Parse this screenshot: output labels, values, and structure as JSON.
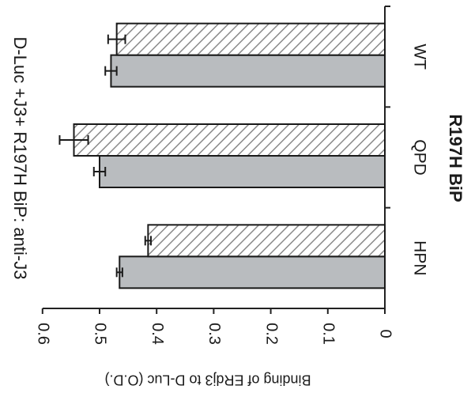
{
  "chart_data": {
    "type": "bar",
    "orientation": "horizontal",
    "title": "D-Luc +J3+ R197H BiP: anti-J3",
    "xlabel": "R197H BiP",
    "ylabel": "Binding of ERdj3 to D-Luc (O.D.)",
    "categories": [
      "WT",
      "QPD",
      "HPN"
    ],
    "series": [
      {
        "values": [
          0.48,
          0.5,
          0.465
        ],
        "errors": [
          0.01,
          0.01,
          0.005
        ],
        "color": "#b9bcbf",
        "pattern": "solid"
      },
      {
        "values": [
          0.47,
          0.545,
          0.415
        ],
        "errors": [
          0.015,
          0.025,
          0.005
        ],
        "color": "#ffffff",
        "pattern": "diagonal-hatch"
      }
    ],
    "value_axis": {
      "range": [
        0,
        0.6
      ],
      "ticks": [
        "0",
        "0.1",
        "0.2",
        "0.3",
        "0.4",
        "0.5",
        "0.6"
      ]
    },
    "grid": false,
    "legend": "none"
  }
}
